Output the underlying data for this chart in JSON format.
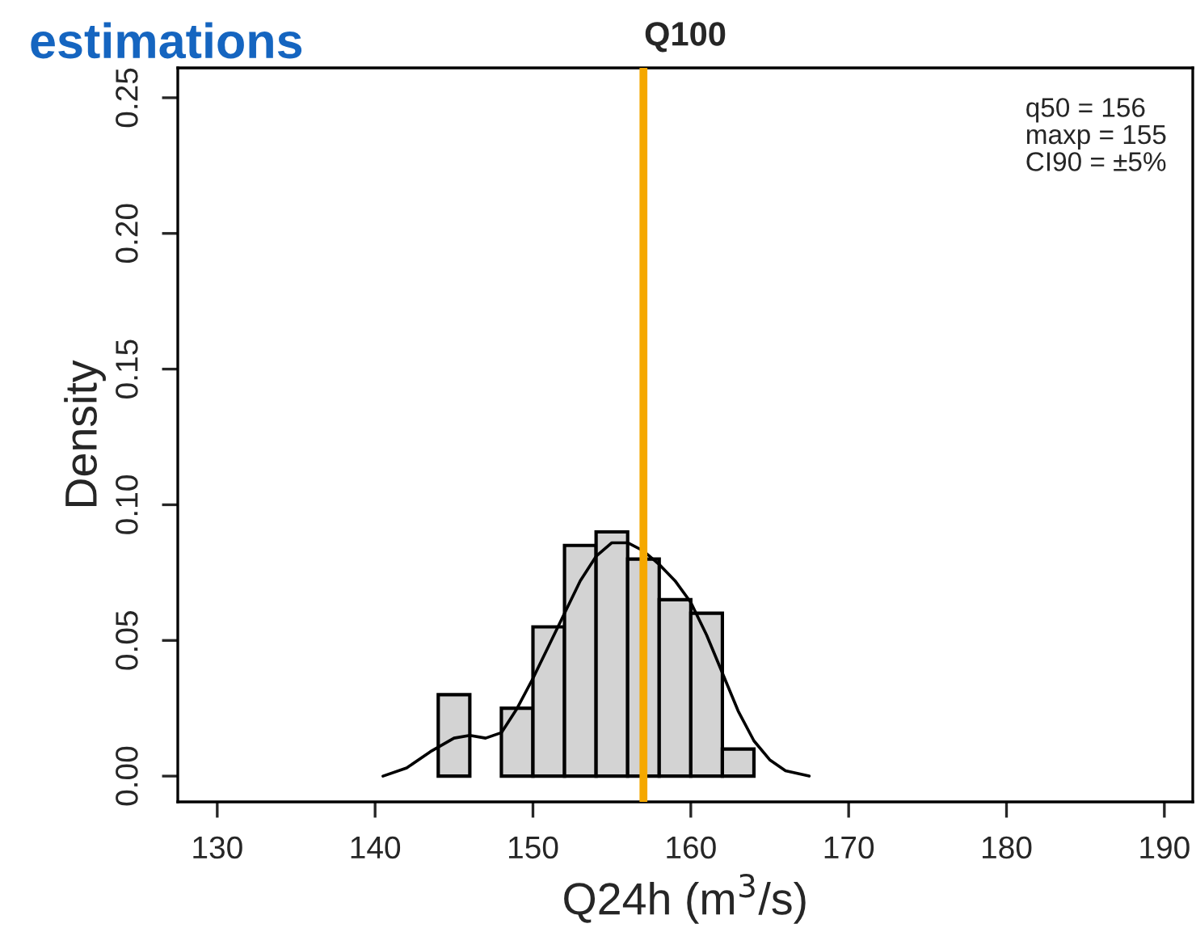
{
  "chart_data": {
    "type": "histogram",
    "title": "Q100",
    "xlabel": "Q24h (m$^{3}$/s)",
    "ylabel": "Density",
    "bins": [
      144,
      146,
      148,
      150,
      152,
      154,
      156,
      158,
      160,
      162,
      164
    ],
    "values": [
      0.03,
      0,
      0.025,
      0.055,
      0.085,
      0.09,
      0.08,
      0.065,
      0.06,
      0.01
    ],
    "color": "#d3d3d3",
    "series": [
      {
        "type": "line",
        "color": "#000000",
        "x": [
          140.5,
          142,
          143.5,
          145,
          146,
          147,
          148,
          149,
          150,
          151,
          152,
          153,
          154,
          155,
          156,
          157,
          158,
          159,
          160,
          161,
          162,
          163,
          164,
          165,
          166,
          167.5
        ],
        "values": [
          0.0,
          0.003,
          0.009,
          0.014,
          0.015,
          0.014,
          0.016,
          0.025,
          0.036,
          0.048,
          0.06,
          0.072,
          0.081,
          0.086,
          0.086,
          0.083,
          0.078,
          0.072,
          0.064,
          0.052,
          0.038,
          0.024,
          0.013,
          0.006,
          0.002,
          0.0
        ]
      }
    ],
    "ref_lines": [
      {
        "axis": "x",
        "value": 157,
        "color": "#f5a800"
      }
    ],
    "annotations": [
      "estimations",
      "q50 = 156\nmaxp = 155\nCI90 = ±5%"
    ],
    "xlim": [
      127.5,
      191.8
    ],
    "ylim": [
      -0.0095,
      0.261
    ],
    "xticks": [
      130,
      140,
      150,
      160,
      170,
      180,
      190
    ],
    "yticks": [
      {
        "value": 0,
        "label": "0.00"
      },
      {
        "value": 0.05,
        "label": "0.05"
      },
      {
        "value": 0.1,
        "label": "0.10"
      },
      {
        "value": 0.15,
        "label": "0.15"
      },
      {
        "value": 0.2,
        "label": "0.20"
      },
      {
        "value": 0.25,
        "label": "0.25"
      }
    ],
    "grid": false,
    "legend": false
  }
}
